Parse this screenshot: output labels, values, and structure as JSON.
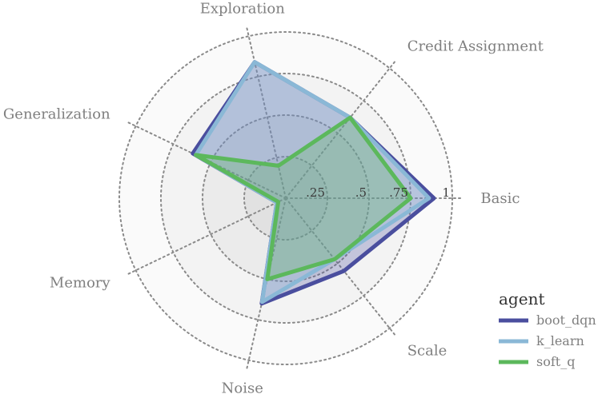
{
  "chart_data": {
    "type": "radar",
    "axes": [
      "Basic",
      "Credit Assignment",
      "Exploration",
      "Generalization",
      "Memory",
      "Noise",
      "Scale"
    ],
    "ticks": [
      0.25,
      0.5,
      0.75,
      1.0
    ],
    "tick_labels": [
      ".25",
      ".5",
      ".75",
      "1"
    ],
    "range": [
      0,
      1
    ],
    "grid": true,
    "legend": {
      "title": "agent",
      "position": "bottom-right"
    },
    "series": [
      {
        "name": "boot_dqn",
        "color": "#4a4e9e",
        "values": [
          0.89,
          0.62,
          0.84,
          0.62,
          0.06,
          0.65,
          0.56
        ]
      },
      {
        "name": "k_learn",
        "color": "#8ab8d6",
        "values": [
          0.86,
          0.62,
          0.84,
          0.6,
          0.06,
          0.64,
          0.47
        ]
      },
      {
        "name": "soft_q",
        "color": "#5cb85c",
        "values": [
          0.75,
          0.62,
          0.2,
          0.6,
          0.05,
          0.5,
          0.47
        ]
      }
    ]
  }
}
